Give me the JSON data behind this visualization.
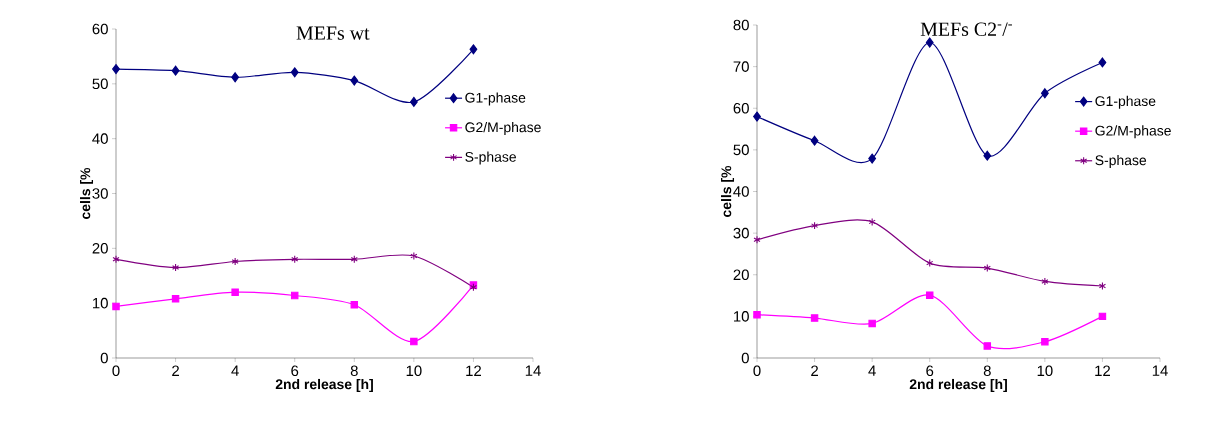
{
  "chart_data": [
    {
      "type": "line",
      "title": "MEFs wt",
      "xlabel": "2nd release [h]",
      "ylabel": "cells [%",
      "x": [
        0,
        2,
        4,
        6,
        8,
        10,
        12
      ],
      "xlim": [
        0,
        14
      ],
      "xticks": [
        0,
        2,
        4,
        6,
        8,
        10,
        12,
        14
      ],
      "ylim": [
        0,
        60
      ],
      "yticks": [
        0,
        10,
        20,
        30,
        40,
        50,
        60
      ],
      "grid": false,
      "legend": "right",
      "line_style": "solid",
      "series": [
        {
          "name": "G1-phase",
          "color": "#000080",
          "marker": "diamond",
          "values": [
            52.7,
            52.4,
            51.2,
            52.1,
            50.6,
            46.7,
            56.3
          ]
        },
        {
          "name": "G2/M-phase",
          "color": "#ff00ff",
          "marker": "square",
          "values": [
            9.4,
            10.8,
            12.0,
            11.4,
            9.7,
            3.0,
            13.3
          ]
        },
        {
          "name": "S-phase",
          "color": "#800080",
          "marker": "cross",
          "values": [
            18.0,
            16.5,
            17.6,
            18.0,
            18.0,
            18.6,
            12.9
          ]
        }
      ]
    },
    {
      "type": "line",
      "title": "MEFs C2$^{-}$/$^{-}$",
      "xlabel": "2nd release [h]",
      "ylabel": "cells [%",
      "x": [
        0,
        2,
        4,
        6,
        8,
        10,
        12
      ],
      "xlim": [
        0,
        14
      ],
      "xticks": [
        0,
        2,
        4,
        6,
        8,
        10,
        12,
        14
      ],
      "ylim": [
        0,
        80
      ],
      "yticks": [
        0,
        10,
        20,
        30,
        40,
        50,
        60,
        70,
        80
      ],
      "grid": false,
      "legend": "right",
      "line_style": "solid",
      "series": [
        {
          "name": "G1-phase",
          "color": "#000080",
          "marker": "diamond",
          "values": [
            58.0,
            52.2,
            47.9,
            75.8,
            48.6,
            63.6,
            71.0
          ]
        },
        {
          "name": "G2/M-phase",
          "color": "#ff00ff",
          "marker": "square",
          "values": [
            10.4,
            9.6,
            8.3,
            15.1,
            2.9,
            3.9,
            10.0
          ]
        },
        {
          "name": "S-phase",
          "color": "#800080",
          "marker": "cross",
          "values": [
            28.4,
            31.8,
            32.7,
            22.8,
            21.6,
            18.4,
            17.3
          ]
        }
      ]
    }
  ]
}
